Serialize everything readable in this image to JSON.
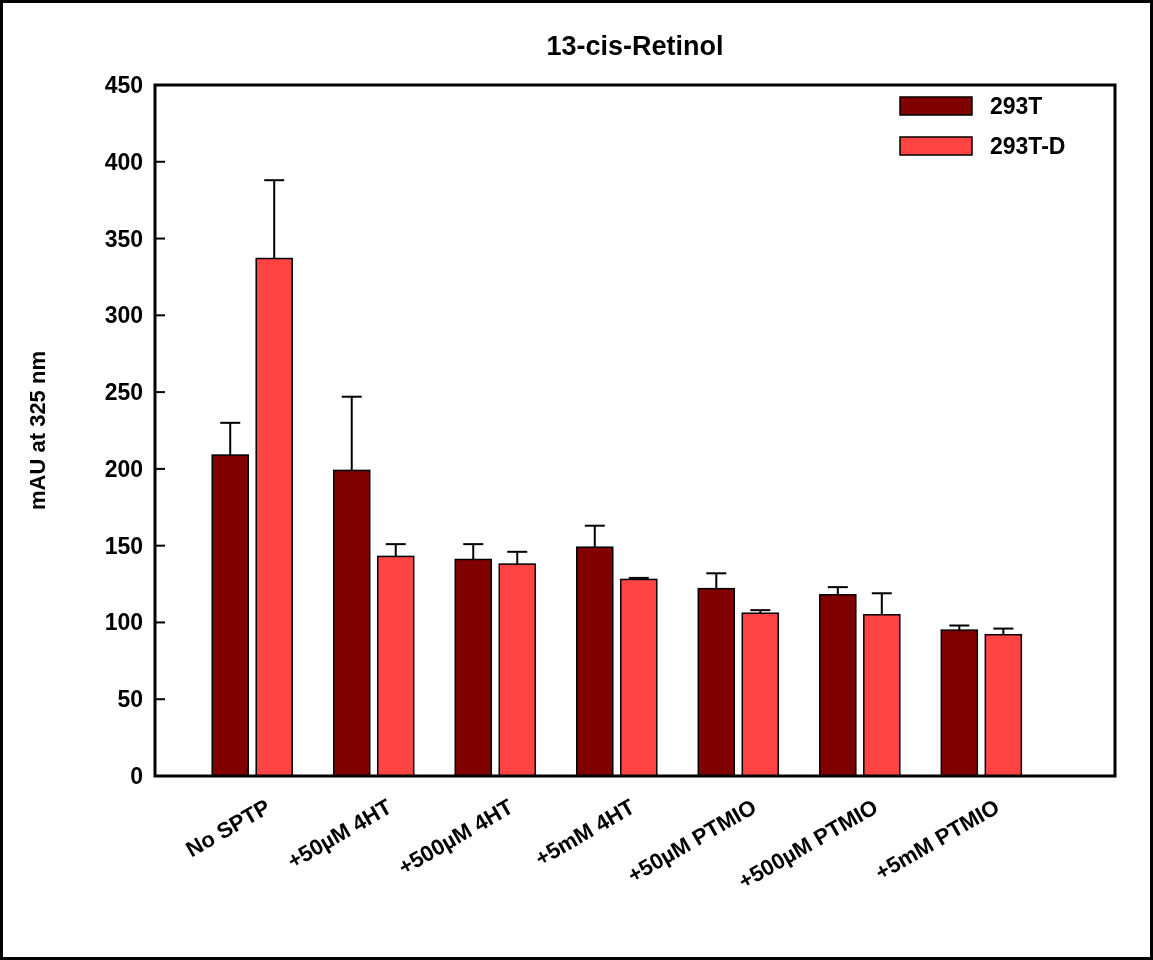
{
  "chart_data": {
    "type": "bar",
    "title": "13-cis-Retinol",
    "ylabel": "mAU at 325 nm",
    "categories": [
      "No SPTP",
      "+50µM 4HT",
      "+500µM 4HT",
      "+5mM 4HT",
      "+50µM PTMIO",
      "+500µM PTMIO",
      "+5mM PTMIO"
    ],
    "series": [
      {
        "name": "293T",
        "color": "#800000",
        "values": [
          209,
          199,
          141,
          149,
          122,
          118,
          95
        ],
        "errors": [
          [
            209,
            230
          ],
          [
            199,
            247
          ],
          [
            141,
            151
          ],
          [
            149,
            163
          ],
          [
            122,
            132
          ],
          [
            118,
            123
          ],
          [
            95,
            98
          ]
        ]
      },
      {
        "name": "293T-D",
        "color": "#ff4444",
        "values": [
          337,
          143,
          138,
          128,
          106,
          105,
          92
        ],
        "errors": [
          [
            337,
            388
          ],
          [
            143,
            151
          ],
          [
            138,
            146
          ],
          [
            128,
            129
          ],
          [
            106,
            108
          ],
          [
            105,
            119
          ],
          [
            92,
            96
          ]
        ]
      }
    ],
    "ylim": [
      0,
      450
    ],
    "yticks": [
      0,
      50,
      100,
      150,
      200,
      250,
      300,
      350,
      400,
      450
    ],
    "grid": false,
    "legend": "top right"
  }
}
